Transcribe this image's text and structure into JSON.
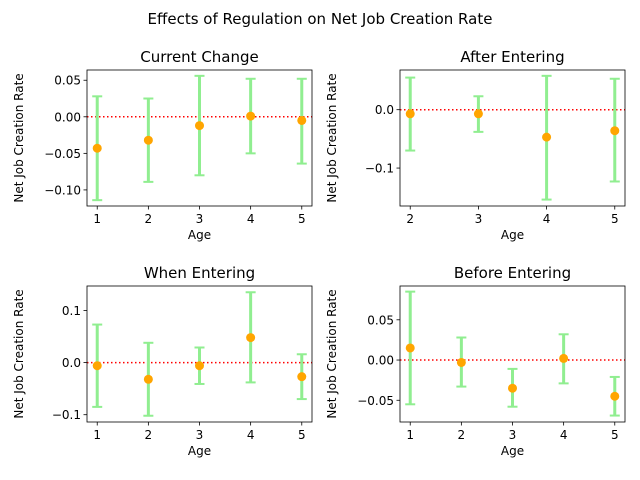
{
  "suptitle": "Effects of Regulation on Net Job Creation Rate",
  "colors": {
    "errorbar": "#90ee90",
    "point": "#ffa500",
    "zero_line": "#ff0000",
    "axes": "#000000"
  },
  "chart_data": [
    {
      "type": "scatter",
      "title": "Current Change",
      "xlabel": "Age",
      "ylabel": "Net Job Creation Rate",
      "x": [
        1,
        2,
        3,
        4,
        5
      ],
      "y": [
        -0.043,
        -0.032,
        -0.012,
        0.001,
        -0.005
      ],
      "err_low": [
        -0.114,
        -0.089,
        -0.08,
        -0.05,
        -0.064
      ],
      "err_high": [
        0.028,
        0.025,
        0.056,
        0.052,
        0.052
      ],
      "xlim": [
        0.8,
        5.2
      ],
      "ylim": [
        -0.122,
        0.064
      ],
      "yticks": [
        -0.1,
        -0.05,
        0.0,
        0.05
      ],
      "ytick_labels": [
        "−0.10",
        "−0.05",
        "0.00",
        "0.05"
      ],
      "xticks": [
        1,
        2,
        3,
        4,
        5
      ],
      "reference_line": 0,
      "grid": false
    },
    {
      "type": "scatter",
      "title": "After Entering",
      "xlabel": "Age",
      "ylabel": "Net Job Creation Rate",
      "x": [
        2,
        3,
        4,
        5
      ],
      "y": [
        -0.007,
        -0.007,
        -0.047,
        -0.036
      ],
      "err_low": [
        -0.07,
        -0.038,
        -0.154,
        -0.123
      ],
      "err_high": [
        0.055,
        0.023,
        0.058,
        0.053
      ],
      "xlim": [
        1.85,
        5.15
      ],
      "ylim": [
        -0.165,
        0.068
      ],
      "yticks": [
        -0.1,
        0.0
      ],
      "ytick_labels": [
        "−0.1",
        "0.0"
      ],
      "xticks": [
        2,
        3,
        4,
        5
      ],
      "reference_line": 0,
      "grid": false
    },
    {
      "type": "scatter",
      "title": "When Entering",
      "xlabel": "Age",
      "ylabel": "Net Job Creation Rate",
      "x": [
        1,
        2,
        3,
        4,
        5
      ],
      "y": [
        -0.006,
        -0.032,
        -0.006,
        0.048,
        -0.027
      ],
      "err_low": [
        -0.085,
        -0.102,
        -0.041,
        -0.038,
        -0.07
      ],
      "err_high": [
        0.073,
        0.038,
        0.029,
        0.135,
        0.016
      ],
      "xlim": [
        0.8,
        5.2
      ],
      "ylim": [
        -0.114,
        0.147
      ],
      "yticks": [
        -0.1,
        0.0,
        0.1
      ],
      "ytick_labels": [
        "−0.1",
        "0.0",
        "0.1"
      ],
      "xticks": [
        1,
        2,
        3,
        4,
        5
      ],
      "reference_line": 0,
      "grid": false
    },
    {
      "type": "scatter",
      "title": "Before Entering",
      "xlabel": "Age",
      "ylabel": "Net Job Creation Rate",
      "x": [
        1,
        2,
        3,
        4,
        5
      ],
      "y": [
        0.015,
        -0.003,
        -0.035,
        0.002,
        -0.045
      ],
      "err_low": [
        -0.055,
        -0.033,
        -0.058,
        -0.029,
        -0.069
      ],
      "err_high": [
        0.085,
        0.028,
        -0.011,
        0.032,
        -0.021
      ],
      "xlim": [
        0.8,
        5.2
      ],
      "ylim": [
        -0.077,
        0.092
      ],
      "yticks": [
        -0.05,
        0.0,
        0.05
      ],
      "ytick_labels": [
        "−0.05",
        "0.00",
        "0.05"
      ],
      "xticks": [
        1,
        2,
        3,
        4,
        5
      ],
      "reference_line": 0,
      "grid": false
    }
  ]
}
